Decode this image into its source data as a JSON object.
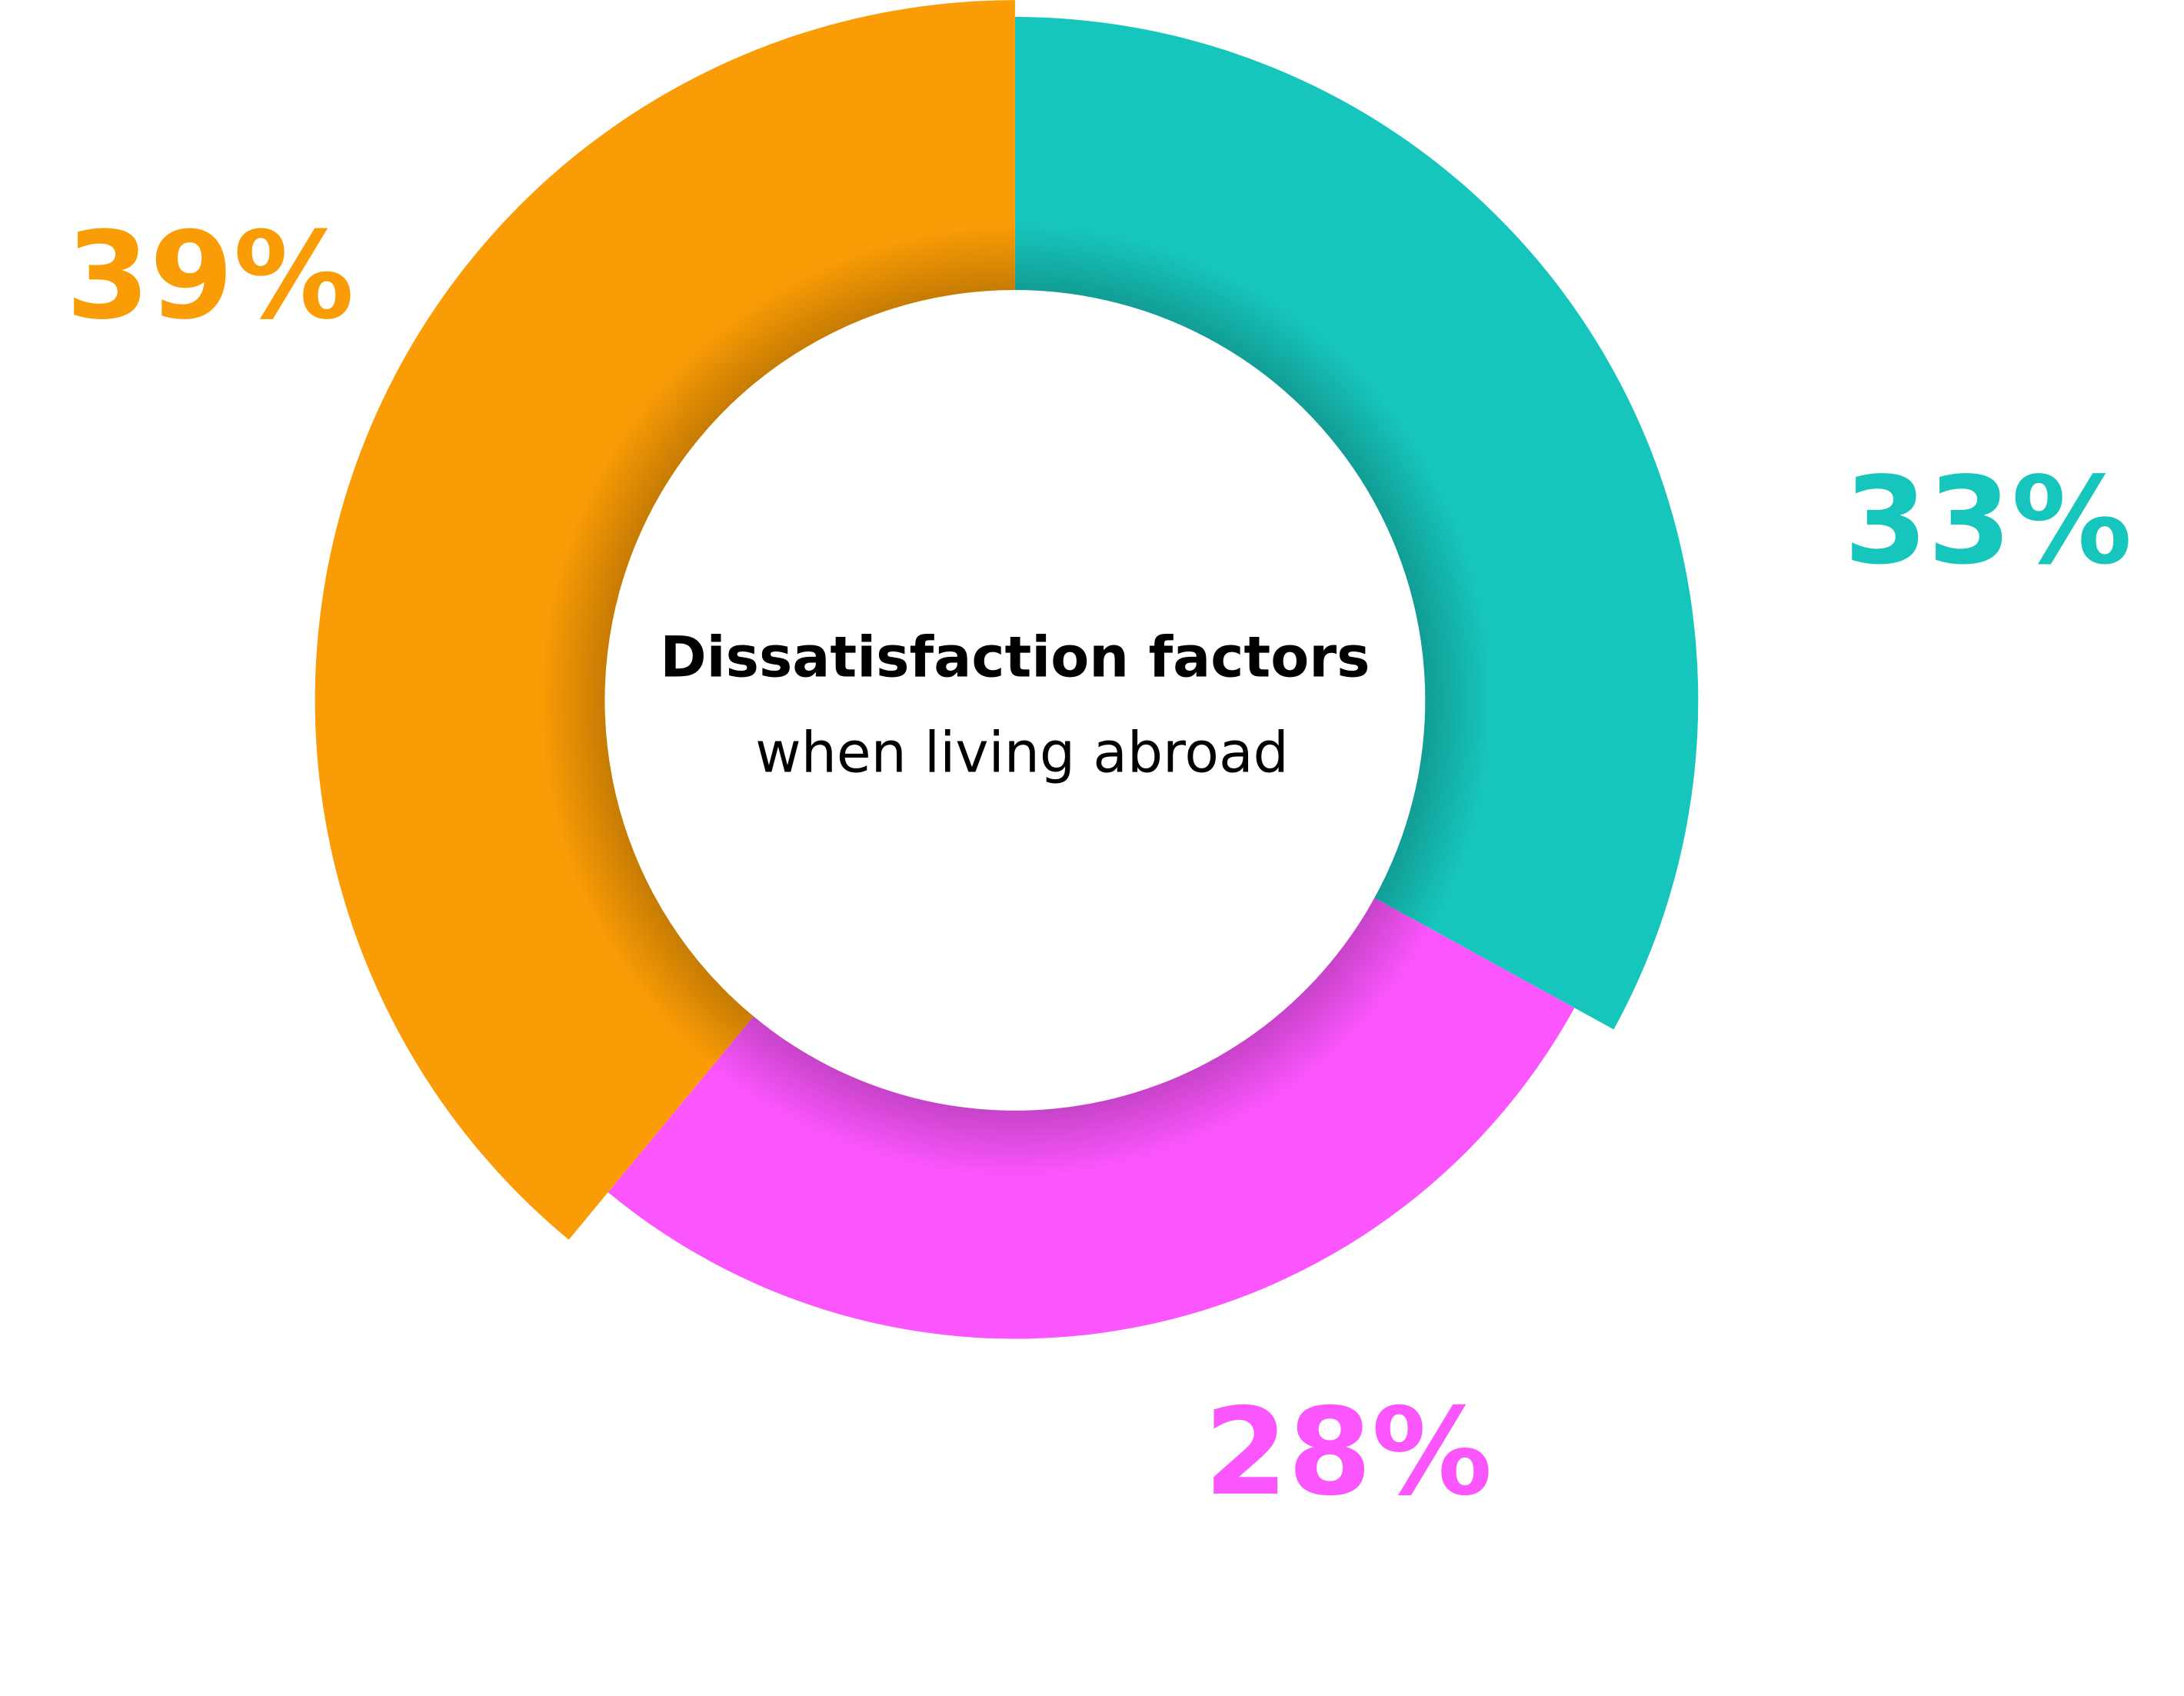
{
  "chart_data": {
    "type": "pie",
    "title": "Dissatisfaction factors",
    "subtitle": "when living abroad",
    "values": [
      33,
      28,
      39
    ],
    "value_labels": [
      "33%",
      "28%",
      "39%"
    ],
    "colors": [
      "#16c6bc",
      "#fb55fd",
      "#fa9c05"
    ]
  }
}
